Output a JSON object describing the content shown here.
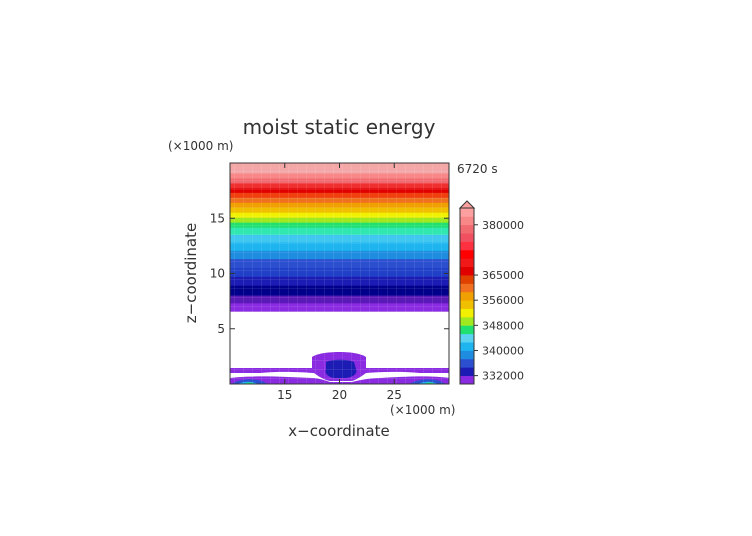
{
  "chart_data": {
    "type": "heatmap",
    "title": "moist static energy",
    "time_label": "6720 s",
    "xlabel": "x−coordinate",
    "ylabel": "z−coordinate",
    "x_unit": "(×1000 m)",
    "z_unit": "(×1000 m)",
    "xlim": [
      10,
      30
    ],
    "zlim": [
      0,
      20
    ],
    "x_ticks": [
      "15",
      "20",
      "25"
    ],
    "x_tick_values": [
      15,
      20,
      25
    ],
    "z_ticks": [
      "5",
      "10",
      "15"
    ],
    "z_tick_values": [
      5,
      10,
      15
    ],
    "colorbar": {
      "tick_labels": [
        "332000",
        "340000",
        "348000",
        "356000",
        "365000",
        "380000"
      ],
      "tick_levels": [
        1,
        4,
        7,
        10,
        13,
        19
      ],
      "colors": [
        "#8a2be2",
        "#1c1cb4",
        "#2c4fd0",
        "#1e8de0",
        "#1eb4f0",
        "#5ad2f0",
        "#20e070",
        "#a0e820",
        "#f0f000",
        "#f0c000",
        "#f0a000",
        "#f07020",
        "#e04000",
        "#e00000",
        "#f01818",
        "#ff0000",
        "#ff3040",
        "#f05060",
        "#f06a70",
        "#f88888",
        "#ffa0a0"
      ],
      "extend_top": true
    },
    "bands_upper": [
      {
        "z0": 19.05,
        "z1": 20.0,
        "color": "#f4a7a7"
      },
      {
        "z0": 18.6,
        "z1": 19.05,
        "color": "#f88888"
      },
      {
        "z0": 18.15,
        "z1": 18.6,
        "color": "#f06a70"
      },
      {
        "z0": 17.7,
        "z1": 18.15,
        "color": "#f03030"
      },
      {
        "z0": 17.3,
        "z1": 17.7,
        "color": "#e00000"
      },
      {
        "z0": 16.85,
        "z1": 17.3,
        "color": "#f04010"
      },
      {
        "z0": 16.4,
        "z1": 16.85,
        "color": "#f07020"
      },
      {
        "z0": 15.95,
        "z1": 16.4,
        "color": "#f0a000"
      },
      {
        "z0": 15.5,
        "z1": 15.95,
        "color": "#f0c000"
      },
      {
        "z0": 15.05,
        "z1": 15.5,
        "color": "#f0f000"
      },
      {
        "z0": 14.6,
        "z1": 15.05,
        "color": "#a0e820"
      },
      {
        "z0": 14.15,
        "z1": 14.6,
        "color": "#20e070"
      },
      {
        "z0": 13.5,
        "z1": 14.15,
        "color": "#30e8b0"
      },
      {
        "z0": 12.8,
        "z1": 13.5,
        "color": "#40c8f0"
      },
      {
        "z0": 12.05,
        "z1": 12.8,
        "color": "#1eb4f0"
      },
      {
        "z0": 11.3,
        "z1": 12.05,
        "color": "#1e8de0"
      },
      {
        "z0": 10.5,
        "z1": 11.3,
        "color": "#2c4fd0"
      },
      {
        "z0": 9.7,
        "z1": 10.5,
        "color": "#2040c8"
      },
      {
        "z0": 8.9,
        "z1": 9.7,
        "color": "#1c1cb4"
      },
      {
        "z0": 8.0,
        "z1": 8.9,
        "color": "#00008b"
      },
      {
        "z0": 7.3,
        "z1": 8.0,
        "color": "#5a1ab8"
      },
      {
        "z0": 6.6,
        "z1": 7.3,
        "color": "#8a2be2"
      }
    ]
  }
}
